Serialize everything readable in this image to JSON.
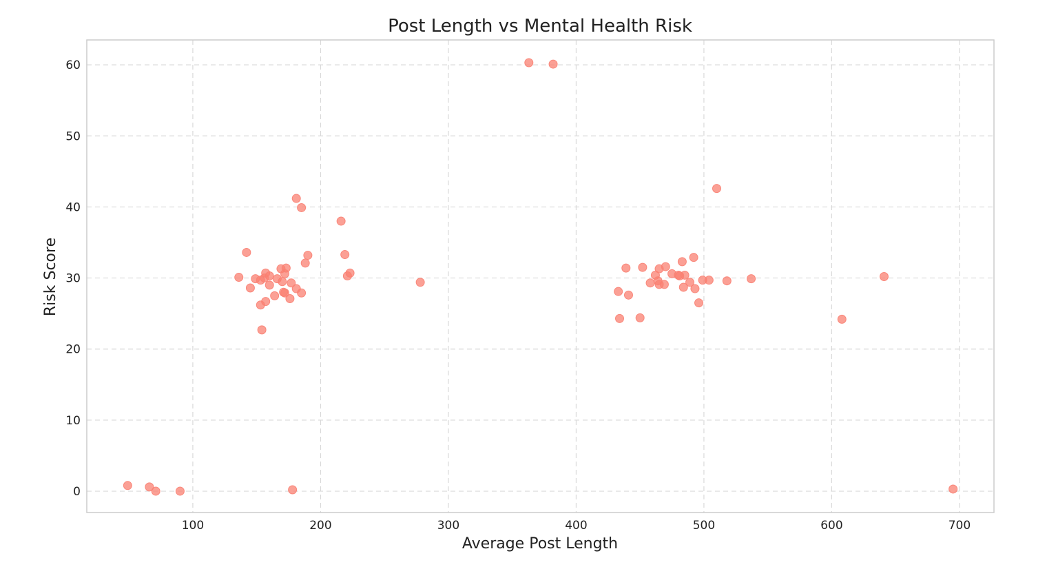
{
  "chart_data": {
    "type": "scatter",
    "title": "Post Length vs Mental Health Risk",
    "xlabel": "Average Post Length",
    "ylabel": "Risk Score",
    "xlim": [
      17,
      727
    ],
    "ylim": [
      -3,
      63.5
    ],
    "xticks": [
      100,
      200,
      300,
      400,
      500,
      600,
      700
    ],
    "yticks": [
      0,
      10,
      20,
      30,
      40,
      50,
      60
    ],
    "grid": true,
    "point_color": "#fa8072",
    "points": [
      {
        "x": 49,
        "y": 0.8
      },
      {
        "x": 66,
        "y": 0.6
      },
      {
        "x": 71,
        "y": 0.0
      },
      {
        "x": 90,
        "y": 0.0
      },
      {
        "x": 178,
        "y": 0.2
      },
      {
        "x": 695,
        "y": 0.3
      },
      {
        "x": 136,
        "y": 30.1
      },
      {
        "x": 142,
        "y": 33.6
      },
      {
        "x": 145,
        "y": 28.6
      },
      {
        "x": 149,
        "y": 29.9
      },
      {
        "x": 153,
        "y": 29.7
      },
      {
        "x": 153,
        "y": 26.2
      },
      {
        "x": 154,
        "y": 22.7
      },
      {
        "x": 156,
        "y": 30.0
      },
      {
        "x": 157,
        "y": 30.7
      },
      {
        "x": 157,
        "y": 26.7
      },
      {
        "x": 160,
        "y": 30.3
      },
      {
        "x": 160,
        "y": 29.0
      },
      {
        "x": 164,
        "y": 27.5
      },
      {
        "x": 166,
        "y": 29.9
      },
      {
        "x": 169,
        "y": 31.3
      },
      {
        "x": 170,
        "y": 29.5
      },
      {
        "x": 171,
        "y": 28.0
      },
      {
        "x": 172,
        "y": 27.9
      },
      {
        "x": 172,
        "y": 30.6
      },
      {
        "x": 173,
        "y": 31.4
      },
      {
        "x": 176,
        "y": 27.1
      },
      {
        "x": 177,
        "y": 29.3
      },
      {
        "x": 181,
        "y": 28.5
      },
      {
        "x": 181,
        "y": 41.2
      },
      {
        "x": 185,
        "y": 27.9
      },
      {
        "x": 185,
        "y": 39.9
      },
      {
        "x": 188,
        "y": 32.1
      },
      {
        "x": 190,
        "y": 33.2
      },
      {
        "x": 216,
        "y": 38.0
      },
      {
        "x": 219,
        "y": 33.3
      },
      {
        "x": 221,
        "y": 30.3
      },
      {
        "x": 223,
        "y": 30.7
      },
      {
        "x": 278,
        "y": 29.4
      },
      {
        "x": 363,
        "y": 60.3
      },
      {
        "x": 382,
        "y": 60.1
      },
      {
        "x": 433,
        "y": 28.1
      },
      {
        "x": 434,
        "y": 24.3
      },
      {
        "x": 439,
        "y": 31.4
      },
      {
        "x": 441,
        "y": 27.6
      },
      {
        "x": 450,
        "y": 24.4
      },
      {
        "x": 452,
        "y": 31.5
      },
      {
        "x": 458,
        "y": 29.3
      },
      {
        "x": 462,
        "y": 30.4
      },
      {
        "x": 464,
        "y": 29.6
      },
      {
        "x": 465,
        "y": 31.3
      },
      {
        "x": 465,
        "y": 29.1
      },
      {
        "x": 469,
        "y": 29.1
      },
      {
        "x": 470,
        "y": 31.6
      },
      {
        "x": 475,
        "y": 30.6
      },
      {
        "x": 480,
        "y": 30.4
      },
      {
        "x": 481,
        "y": 30.3
      },
      {
        "x": 483,
        "y": 32.3
      },
      {
        "x": 484,
        "y": 28.7
      },
      {
        "x": 485,
        "y": 30.4
      },
      {
        "x": 489,
        "y": 29.4
      },
      {
        "x": 492,
        "y": 32.9
      },
      {
        "x": 493,
        "y": 28.5
      },
      {
        "x": 496,
        "y": 26.5
      },
      {
        "x": 499,
        "y": 29.7
      },
      {
        "x": 504,
        "y": 29.7
      },
      {
        "x": 510,
        "y": 42.6
      },
      {
        "x": 518,
        "y": 29.6
      },
      {
        "x": 537,
        "y": 29.9
      },
      {
        "x": 608,
        "y": 24.2
      },
      {
        "x": 641,
        "y": 30.2
      }
    ]
  }
}
